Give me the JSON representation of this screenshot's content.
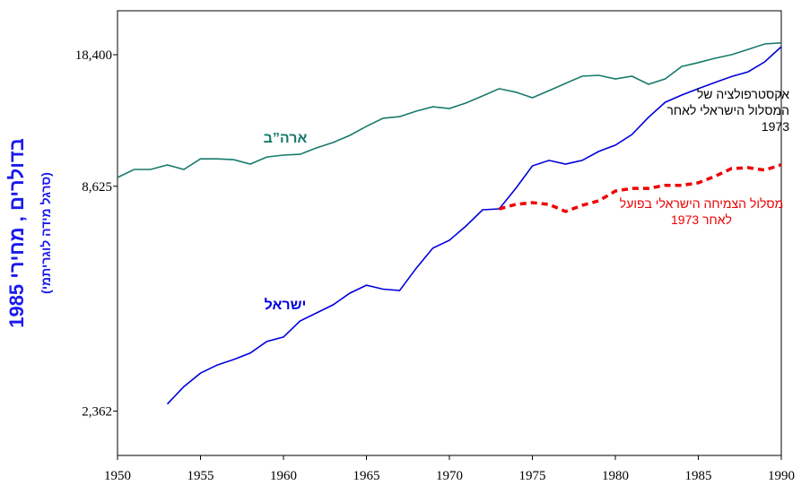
{
  "chart_data": {
    "type": "line",
    "y_label": "בדולרים , מחירי 1985",
    "y_sublabel": "(סרגל מידה לוגריתמי)",
    "log_y": true,
    "xlim": [
      1950,
      1990
    ],
    "xticks": [
      1950,
      1955,
      1960,
      1965,
      1970,
      1975,
      1980,
      1985,
      1990
    ],
    "ylim": [
      1830,
      23700
    ],
    "yticks": [
      {
        "value": 2362,
        "label": "2,362"
      },
      {
        "value": 8625,
        "label": "8,625"
      },
      {
        "value": 18400,
        "label": "18,400"
      }
    ],
    "x": [
      1950,
      1951,
      1952,
      1953,
      1954,
      1955,
      1956,
      1957,
      1958,
      1959,
      1960,
      1961,
      1962,
      1963,
      1964,
      1965,
      1966,
      1967,
      1968,
      1969,
      1970,
      1971,
      1972,
      1973,
      1974,
      1975,
      1976,
      1977,
      1978,
      1979,
      1980,
      1981,
      1982,
      1983,
      1984,
      1985,
      1986,
      1987,
      1988,
      1989,
      1990
    ],
    "series": [
      {
        "name": "ארה”ב",
        "color": "#177a6c",
        "dashed": false,
        "values": [
          9070,
          9500,
          9500,
          9750,
          9500,
          10100,
          10100,
          10050,
          9800,
          10210,
          10320,
          10370,
          10760,
          11100,
          11560,
          12180,
          12760,
          12880,
          13290,
          13630,
          13500,
          13930,
          14510,
          15130,
          14830,
          14360,
          14960,
          15600,
          16260,
          16340,
          16010,
          16260,
          15520,
          16010,
          17200,
          17580,
          18030,
          18400,
          18970,
          19580,
          19700
        ]
      },
      {
        "name": "ישראל",
        "color": "#0000dd",
        "dashed": false,
        "values": [
          null,
          null,
          null,
          2460,
          2720,
          2940,
          3080,
          3180,
          3300,
          3530,
          3620,
          3970,
          4160,
          4360,
          4660,
          4880,
          4770,
          4730,
          5380,
          6040,
          6320,
          6860,
          7530,
          7570,
          null,
          null,
          null,
          null,
          null,
          null,
          null,
          null,
          null,
          null,
          null,
          null,
          null,
          null,
          null,
          null,
          null
        ]
      },
      {
        "name": "אקסטרפולציה של המסלול הישראלי לאחר 1973",
        "color": "#0000dd",
        "dashed": false,
        "values": [
          null,
          null,
          null,
          null,
          null,
          null,
          null,
          null,
          null,
          null,
          null,
          null,
          null,
          null,
          null,
          null,
          null,
          null,
          null,
          null,
          null,
          null,
          null,
          7570,
          8520,
          9700,
          10010,
          9800,
          10010,
          10540,
          10930,
          11620,
          12830,
          13990,
          14590,
          15130,
          15680,
          16220,
          16670,
          17660,
          19270
        ]
      },
      {
        "name": "מסלול הצמיחה הישראלי בפועל לאחר 1973",
        "color": "#ee0000",
        "dashed": true,
        "values": [
          null,
          null,
          null,
          null,
          null,
          null,
          null,
          null,
          null,
          null,
          null,
          null,
          null,
          null,
          null,
          null,
          null,
          null,
          null,
          null,
          null,
          null,
          null,
          7570,
          7770,
          7850,
          7770,
          7460,
          7730,
          7930,
          8390,
          8520,
          8520,
          8670,
          8670,
          8800,
          9130,
          9550,
          9600,
          9470,
          9760
        ]
      }
    ]
  }
}
